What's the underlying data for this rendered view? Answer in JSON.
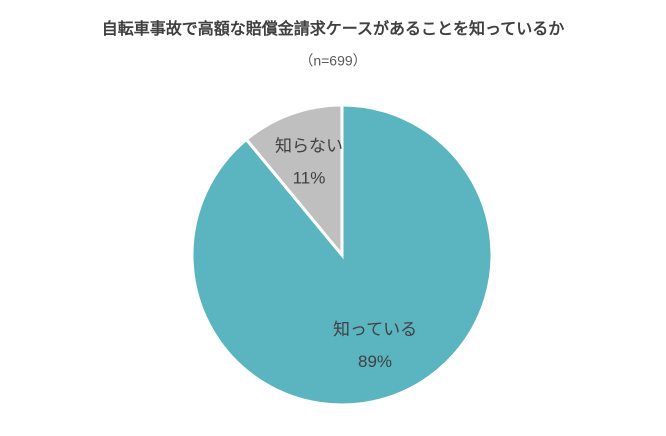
{
  "chart_data": {
    "type": "pie",
    "title": "自転車事故で高額な賠償金請求ケースがあることを知っているか",
    "subtitle": "（n=699）",
    "categories": [
      "知っている",
      "知らない"
    ],
    "values": [
      89,
      11
    ],
    "value_labels": [
      "89%",
      "11%"
    ],
    "colors": [
      "#5bb5c0",
      "#bfbfbf"
    ]
  }
}
